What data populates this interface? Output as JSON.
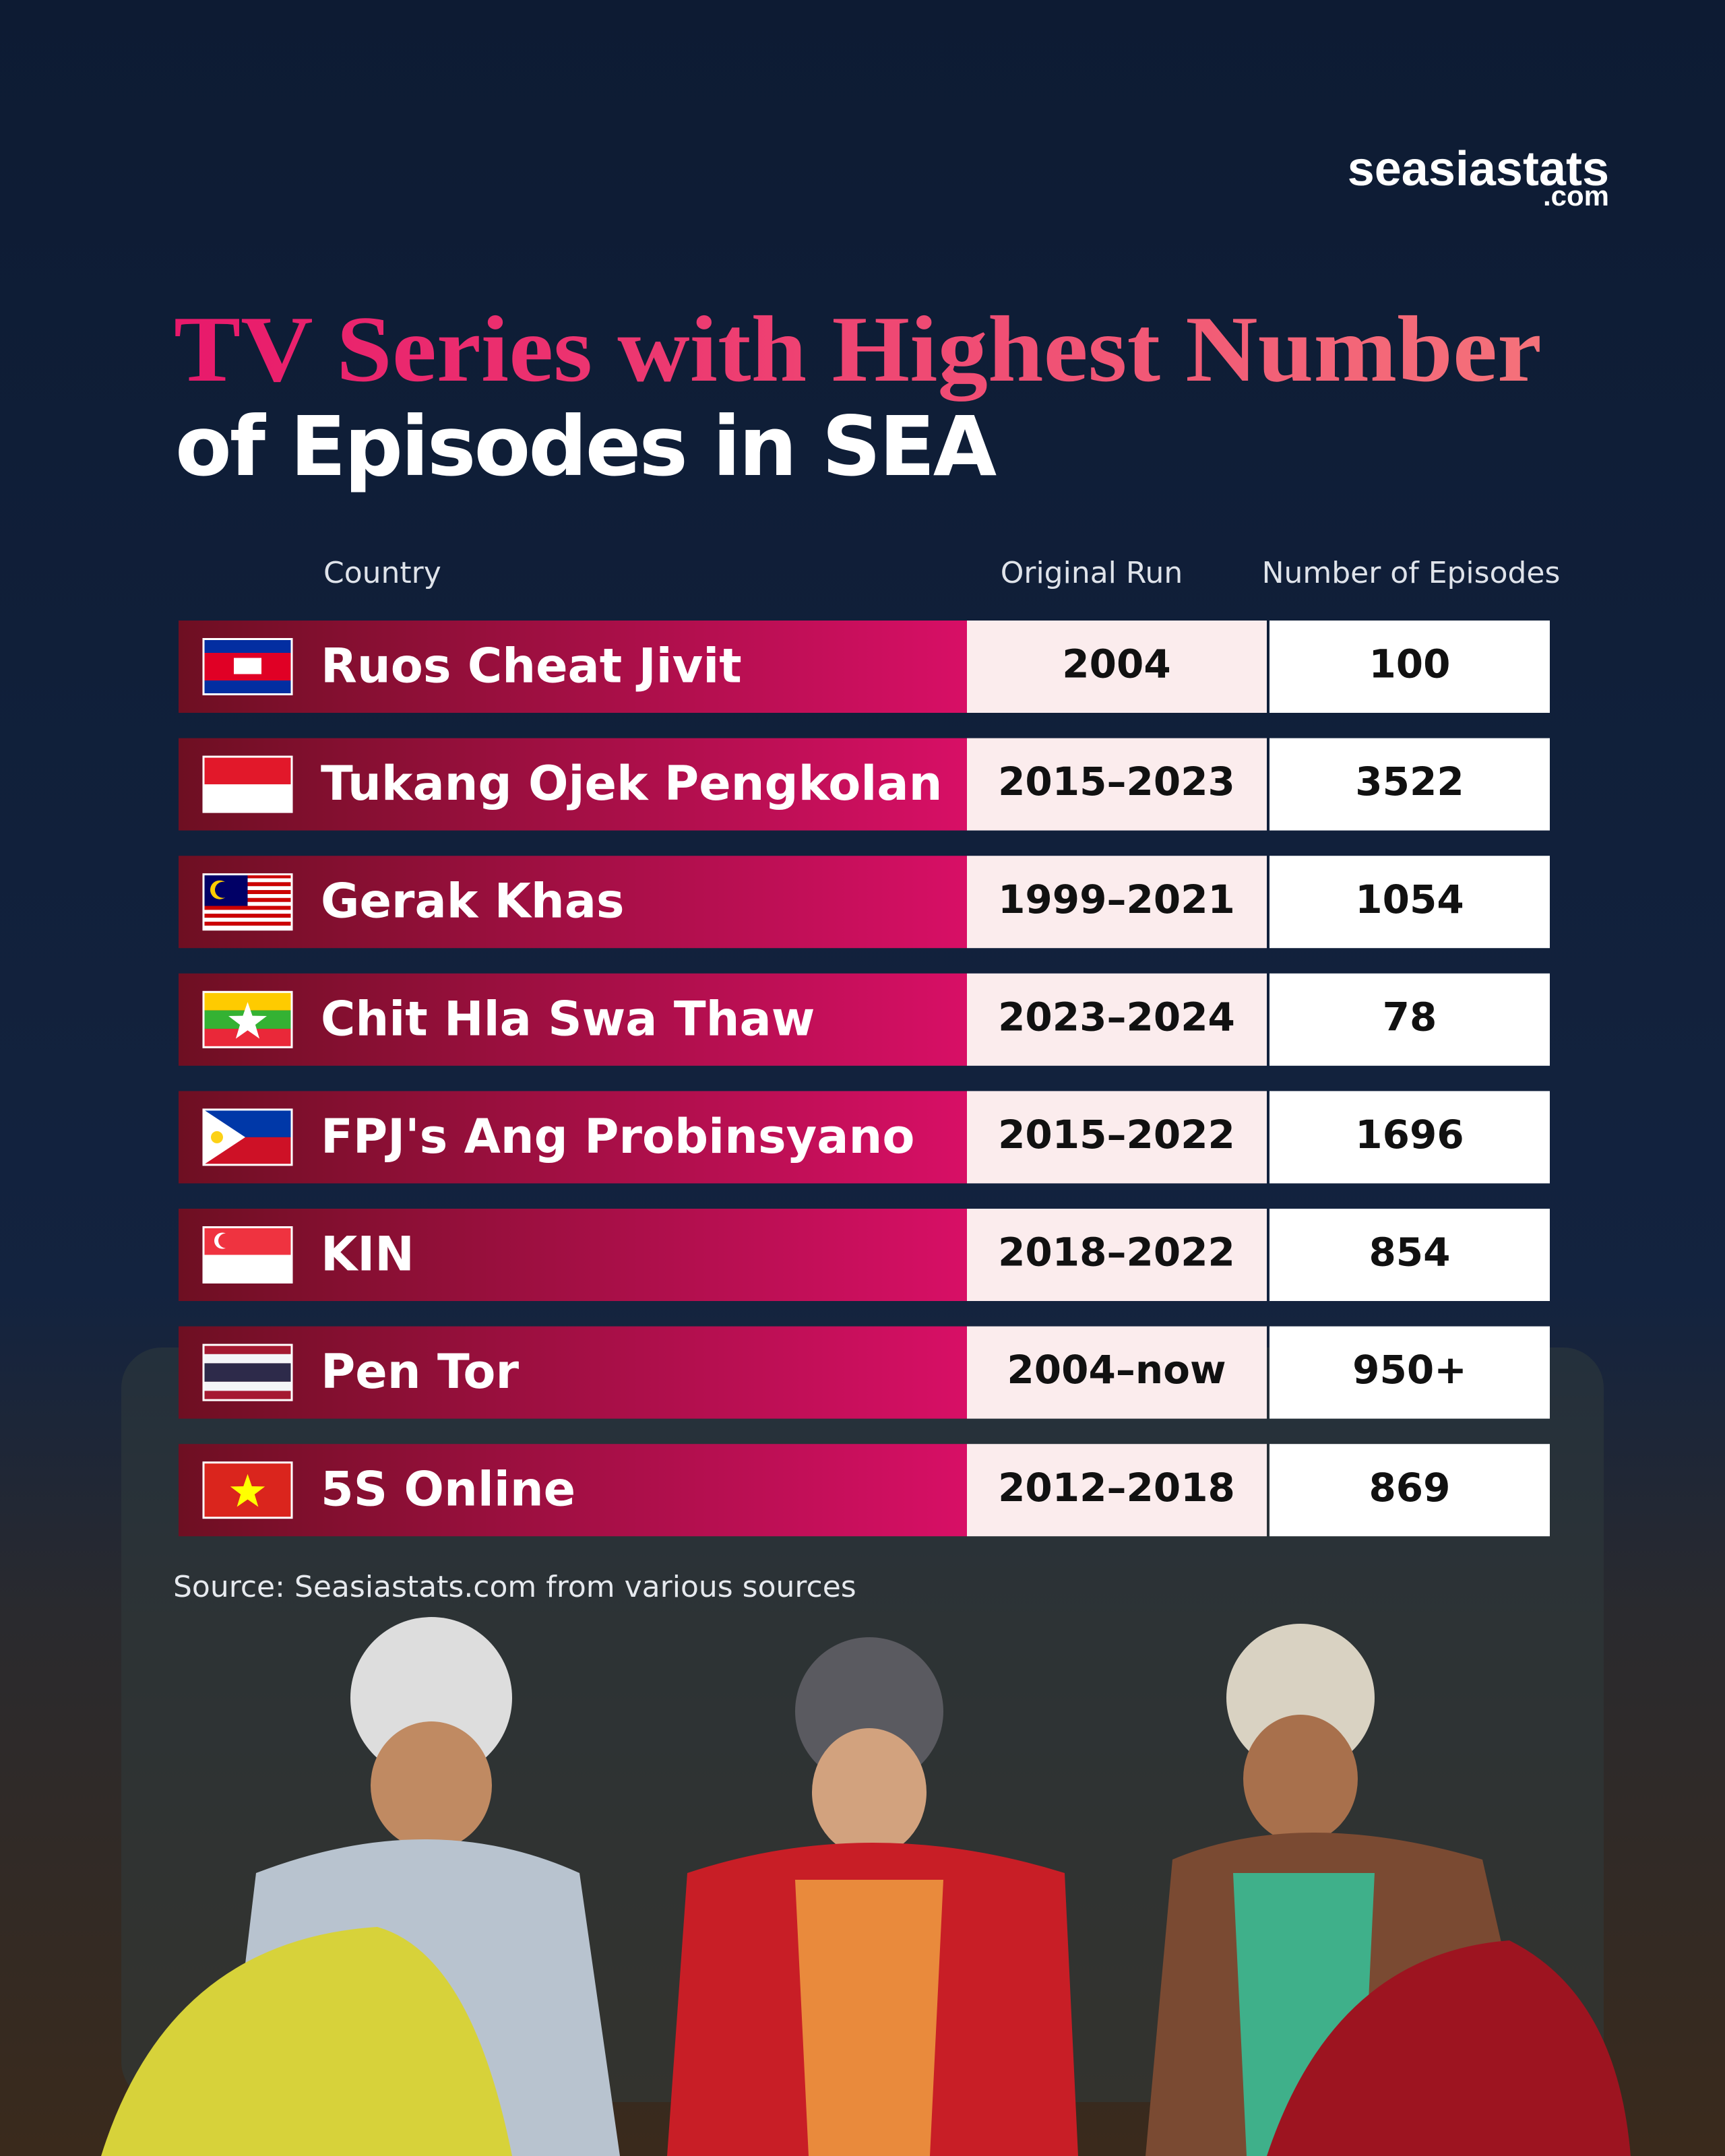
{
  "brand": {
    "name": "seasiastats",
    "suffix": ".com"
  },
  "header": {
    "title_line1": "TV Series with Highest Number",
    "title_line2": "of Episodes in SEA"
  },
  "table": {
    "columns": [
      "Country",
      "Original Run",
      "Number of Episodes"
    ],
    "rows": [
      [
        "Ruos Cheat Jivit",
        "2004",
        100
      ],
      [
        "Tukang Ojek Pengkolan",
        "2015–2023",
        3522
      ],
      [
        "Gerak Khas",
        "1999–2021",
        1054
      ],
      [
        "Chit Hla Swa Thaw",
        "2023–2024",
        78
      ],
      [
        "FPJ's Ang Probinsyano",
        "2015–2022",
        1696
      ],
      [
        "KIN",
        "2018–2022",
        854
      ],
      [
        "Pen Tor",
        "2004–now",
        "950+"
      ],
      [
        "5S Online",
        "2012–2018",
        869
      ]
    ]
  },
  "footer": {
    "source": "Source:  Seasiastats.com from various sources"
  }
}
